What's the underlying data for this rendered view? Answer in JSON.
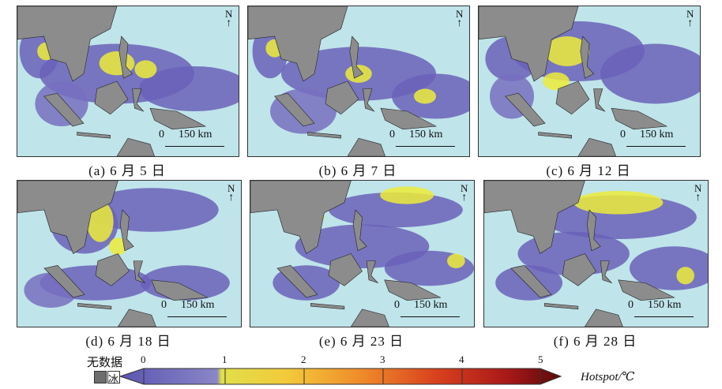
{
  "panels": [
    {
      "caption": "(a) 6 月 5 日"
    },
    {
      "caption": "(b) 6 月 7 日"
    },
    {
      "caption": "(c) 6 月 12 日"
    },
    {
      "caption": "(d) 6 月 18 日"
    },
    {
      "caption": "(e) 6 月 23 日"
    },
    {
      "caption": "(f) 6 月 28 日"
    }
  ],
  "north_label": "N",
  "scale_zero": "0",
  "scale_label": "150 km",
  "legend": {
    "nodata_label": "无数据",
    "ice_label": "冰",
    "ticks": [
      "0",
      "1",
      "2",
      "3",
      "4",
      "5"
    ],
    "title": "Hotspot/℃",
    "colors": {
      "land": "#8c8c8c",
      "ocean": "#bfe4ea",
      "nodata": "#6e6e6e",
      "low": "#6a62b8",
      "mid": "#e8e832",
      "high": "#6b0f0f"
    }
  }
}
